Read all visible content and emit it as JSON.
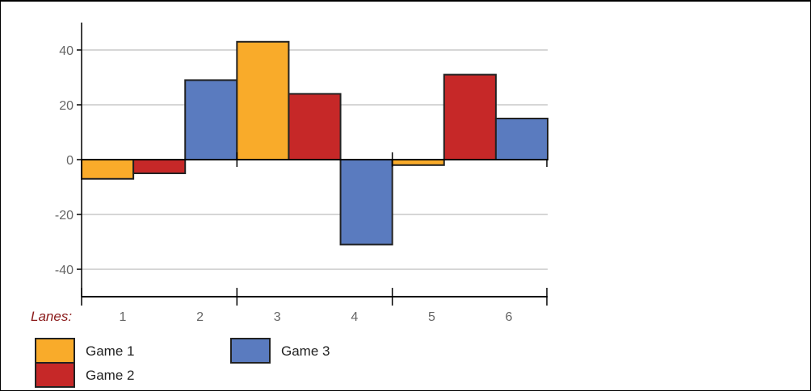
{
  "chart_data": {
    "type": "bar",
    "categories": [
      "1",
      "2",
      "3",
      "4",
      "5",
      "6"
    ],
    "x_prefix_label": "Lanes:",
    "series": [
      {
        "name": "Game 1",
        "color": "#f9ab2a",
        "values": [
          -7,
          null,
          43,
          null,
          -2,
          null
        ]
      },
      {
        "name": "Game 2",
        "color": "#c62828",
        "values": [
          -5,
          null,
          24,
          null,
          null,
          31
        ]
      },
      {
        "name": "Game 3",
        "color": "#5a7bbf",
        "values": [
          null,
          29,
          null,
          -31,
          null,
          15
        ]
      }
    ],
    "bars_ordered": [
      {
        "series": "Game 1",
        "value": -7
      },
      {
        "series": "Game 2",
        "value": -5
      },
      {
        "series": "Game 3",
        "value": 29
      },
      {
        "series": "Game 1",
        "value": 43
      },
      {
        "series": "Game 2",
        "value": 24
      },
      {
        "series": "Game 3",
        "value": -31
      },
      {
        "series": "Game 1",
        "value": -2
      },
      {
        "series": "Game 2",
        "value": 31
      },
      {
        "series": "Game 3",
        "value": 15
      }
    ],
    "y_ticks": [
      40,
      20,
      0,
      -20,
      -40
    ],
    "ylim": [
      -50,
      50
    ],
    "grid": true,
    "legend_position": "bottom-left"
  }
}
